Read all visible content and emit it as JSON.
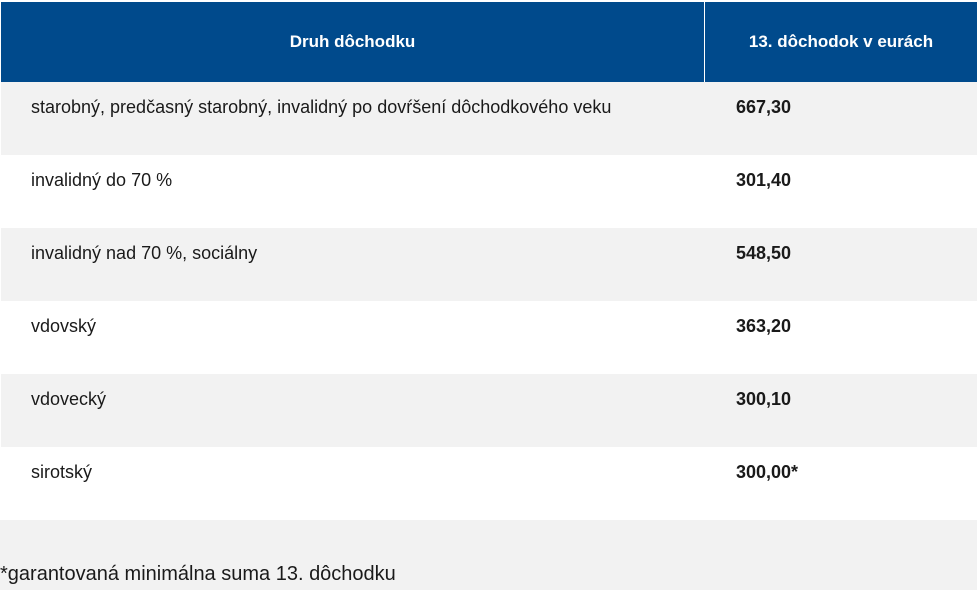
{
  "table": {
    "headers": [
      "Druh dôchodku",
      "13. dôchodok v eurách"
    ],
    "rows": [
      {
        "type": "starobný, predčasný starobný, invalidný po dovŕšení dôchodkového veku",
        "amount": "667,30"
      },
      {
        "type": "invalidný do 70 %",
        "amount": "301,40"
      },
      {
        "type": "invalidný nad 70 %, sociálny",
        "amount": "548,50"
      },
      {
        "type": "vdovský",
        "amount": "363,20"
      },
      {
        "type": "vdovecký",
        "amount": "300,10"
      },
      {
        "type": "sirotský",
        "amount": "300,00*"
      }
    ]
  },
  "footnote": "*garantovaná minimálna suma 13. dôchodku",
  "colors": {
    "header_bg": "#004a8c",
    "row_alt_bg": "#f2f2f2"
  }
}
